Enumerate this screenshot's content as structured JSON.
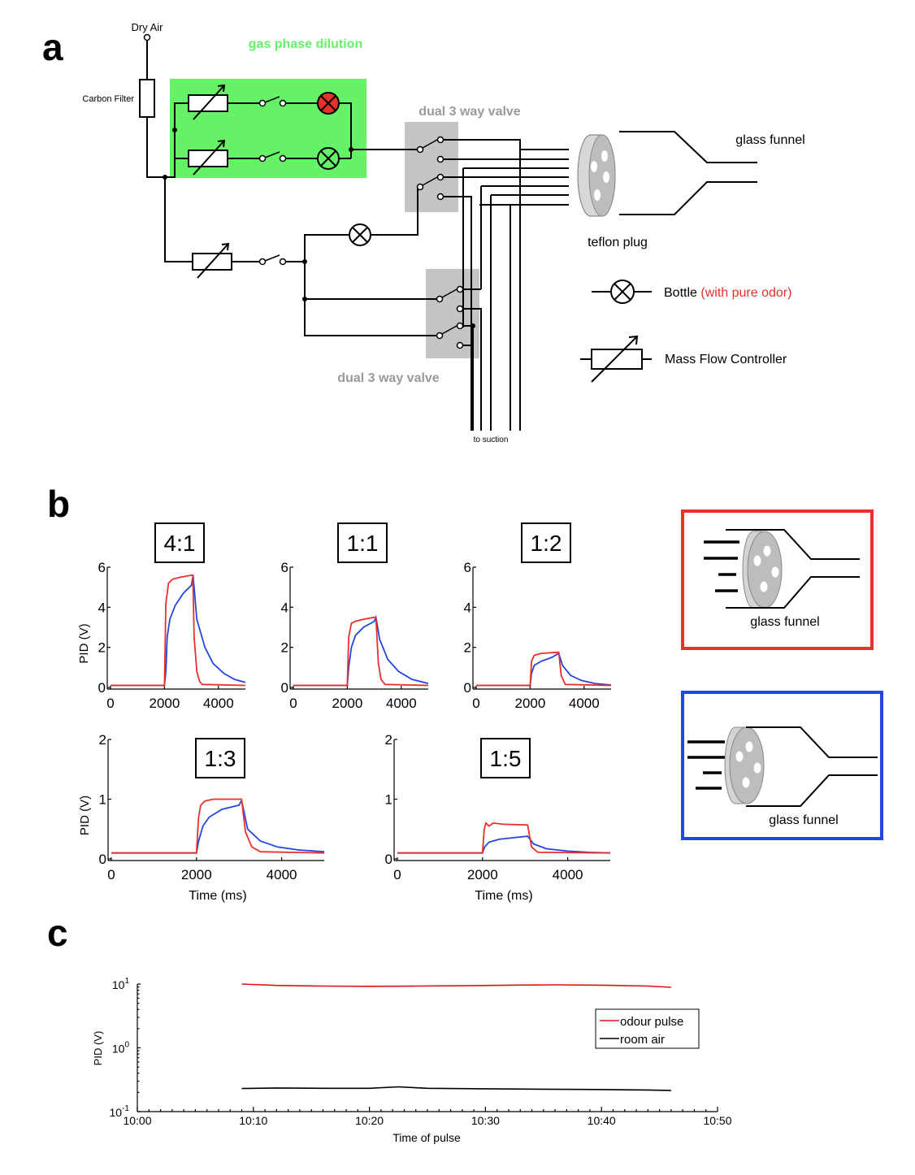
{
  "panel_labels": {
    "a": "a",
    "b": "b",
    "c": "c"
  },
  "colors": {
    "dilution_box": "#66f266",
    "valve_box": "#c4c4c4",
    "red": "#e8312a",
    "blue": "#2345e0",
    "grey_label": "#9a9a9a",
    "legend_red": "#e11010"
  },
  "diagram_a": {
    "dry_air": "Dry Air",
    "carbon_filter": "Carbon Filter",
    "gas_phase_dilution": "gas phase dilution",
    "dual_valve_top": "dual 3 way valve",
    "dual_valve_bottom": "dual 3 way valve",
    "glass_funnel": "glass funnel",
    "teflon_plug": "teflon plug",
    "to_suction": "to suction",
    "legend_bottle": "Bottle",
    "legend_bottle_note": "(with  pure odor)",
    "legend_mfc": "Mass Flow Controller",
    "icons": [
      "mass-flow-controller-icon",
      "switch-icon",
      "bottle-icon",
      "teflon-plug-icon",
      "valve-icon"
    ]
  },
  "insets_b": {
    "red_box_label": "glass funnel",
    "blue_box_label": "glass funnel"
  },
  "chart_data": [
    {
      "type": "line",
      "title": "4:1",
      "ylabel": "PID (V)",
      "xlabel": "",
      "xlim": [
        0,
        5000
      ],
      "ylim": [
        0,
        6
      ],
      "xticks": [
        "0",
        "2000",
        "4000"
      ],
      "yticks": [
        "0",
        "2",
        "4",
        "6"
      ],
      "series": [
        {
          "color": "red",
          "x": [
            0,
            2000,
            2050,
            2150,
            2300,
            2600,
            3000,
            3050,
            3100,
            3200,
            3300,
            3400,
            5000
          ],
          "values": [
            0.1,
            0.1,
            4.2,
            5.2,
            5.4,
            5.5,
            5.6,
            5.6,
            2.5,
            0.8,
            0.3,
            0.15,
            0.1
          ]
        },
        {
          "color": "blue",
          "x": [
            0,
            2000,
            2050,
            2100,
            2200,
            2400,
            2700,
            3000,
            3060,
            3200,
            3500,
            3800,
            4200,
            4600,
            5000
          ],
          "values": [
            0.1,
            0.1,
            0.8,
            2.5,
            3.4,
            4.1,
            4.7,
            5.1,
            5.6,
            3.4,
            2.0,
            1.2,
            0.7,
            0.4,
            0.25
          ]
        }
      ]
    },
    {
      "type": "line",
      "title": "1:1",
      "ylabel": "",
      "xlabel": "",
      "xlim": [
        0,
        5000
      ],
      "ylim": [
        0,
        6
      ],
      "xticks": [
        "0",
        "2000",
        "4000"
      ],
      "yticks": [
        "0",
        "2",
        "4",
        "6"
      ],
      "series": [
        {
          "color": "red",
          "x": [
            0,
            2000,
            2050,
            2150,
            2300,
            2600,
            3000,
            3060,
            3150,
            3250,
            3400,
            5000
          ],
          "values": [
            0.1,
            0.1,
            2.5,
            3.2,
            3.3,
            3.4,
            3.5,
            3.5,
            1.2,
            0.4,
            0.15,
            0.1
          ]
        },
        {
          "color": "blue",
          "x": [
            0,
            2000,
            2050,
            2150,
            2300,
            2600,
            3000,
            3060,
            3200,
            3500,
            3900,
            4400,
            5000
          ],
          "values": [
            0.1,
            0.1,
            1.0,
            2.0,
            2.6,
            3.0,
            3.3,
            3.5,
            2.4,
            1.4,
            0.8,
            0.4,
            0.2
          ]
        }
      ]
    },
    {
      "type": "line",
      "title": "1:2",
      "ylabel": "",
      "xlabel": "",
      "xlim": [
        0,
        5000
      ],
      "ylim": [
        0,
        6
      ],
      "xticks": [
        "0",
        "2000",
        "4000"
      ],
      "yticks": [
        "0",
        "2",
        "4",
        "6"
      ],
      "series": [
        {
          "color": "red",
          "x": [
            0,
            2000,
            2050,
            2150,
            2400,
            3000,
            3060,
            3150,
            3300,
            5000
          ],
          "values": [
            0.1,
            0.1,
            1.3,
            1.6,
            1.7,
            1.75,
            1.75,
            0.6,
            0.15,
            0.1
          ]
        },
        {
          "color": "blue",
          "x": [
            0,
            2000,
            2050,
            2150,
            2400,
            2800,
            3060,
            3200,
            3500,
            3900,
            4400,
            5000
          ],
          "values": [
            0.1,
            0.1,
            0.7,
            1.1,
            1.3,
            1.5,
            1.7,
            1.1,
            0.6,
            0.35,
            0.2,
            0.12
          ]
        }
      ]
    },
    {
      "type": "line",
      "title": "1:3",
      "ylabel": "PID (V)",
      "xlabel": "Time (ms)",
      "xlim": [
        0,
        5000
      ],
      "ylim": [
        0,
        2
      ],
      "xticks": [
        "0",
        "2000",
        "4000"
      ],
      "yticks": [
        "0",
        "1",
        "2"
      ],
      "series": [
        {
          "color": "red",
          "x": [
            0,
            2000,
            2050,
            2100,
            2200,
            2400,
            3000,
            3060,
            3150,
            3300,
            3500,
            5000
          ],
          "values": [
            0.1,
            0.1,
            0.7,
            0.9,
            0.97,
            1.0,
            1.0,
            1.0,
            0.45,
            0.2,
            0.12,
            0.1
          ]
        },
        {
          "color": "blue",
          "x": [
            0,
            2000,
            2050,
            2150,
            2300,
            2600,
            3000,
            3060,
            3200,
            3500,
            3900,
            4400,
            5000
          ],
          "values": [
            0.1,
            0.1,
            0.3,
            0.55,
            0.7,
            0.83,
            0.9,
            0.98,
            0.5,
            0.3,
            0.2,
            0.15,
            0.12
          ]
        }
      ]
    },
    {
      "type": "line",
      "title": "1:5",
      "ylabel": "",
      "xlabel": "Time (ms)",
      "xlim": [
        0,
        5000
      ],
      "ylim": [
        0,
        2
      ],
      "xticks": [
        "0",
        "2000",
        "4000"
      ],
      "yticks": [
        "0",
        "1",
        "2"
      ],
      "series": [
        {
          "color": "red",
          "x": [
            0,
            2000,
            2040,
            2080,
            2150,
            2250,
            2500,
            3000,
            3060,
            3150,
            3300,
            5000
          ],
          "values": [
            0.1,
            0.1,
            0.5,
            0.6,
            0.55,
            0.6,
            0.58,
            0.57,
            0.57,
            0.2,
            0.11,
            0.1
          ]
        },
        {
          "color": "blue",
          "x": [
            0,
            2000,
            2050,
            2150,
            2400,
            2800,
            3060,
            3200,
            3500,
            4000,
            4500,
            5000
          ],
          "values": [
            0.1,
            0.1,
            0.2,
            0.28,
            0.33,
            0.36,
            0.38,
            0.25,
            0.17,
            0.13,
            0.11,
            0.1
          ]
        }
      ]
    },
    {
      "type": "line",
      "title": "",
      "ylabel": "PID (V)",
      "xlabel": "Time of pulse",
      "xlim": [
        0,
        50
      ],
      "ylim": [
        0.1,
        10
      ],
      "yscale": "log",
      "xticks": [
        "10:00",
        "10:10",
        "10:20",
        "10:30",
        "10:40",
        "10:50"
      ],
      "yticks": [
        "10^1",
        "10^0",
        "10^-1"
      ],
      "legend": [
        "odour pulse",
        "room air"
      ],
      "legend_position": "right",
      "series": [
        {
          "name": "odour pulse",
          "color": "legend_red",
          "x": [
            9,
            12,
            16,
            20,
            24,
            28,
            32,
            36,
            40,
            44,
            46
          ],
          "values": [
            10.0,
            9.5,
            9.3,
            9.2,
            9.3,
            9.4,
            9.6,
            9.7,
            9.6,
            9.3,
            8.9
          ]
        },
        {
          "name": "room air",
          "color": "black",
          "x": [
            9,
            12,
            16,
            20,
            22.5,
            25,
            30,
            35,
            40,
            44,
            46
          ],
          "values": [
            0.23,
            0.235,
            0.232,
            0.232,
            0.245,
            0.232,
            0.228,
            0.225,
            0.222,
            0.218,
            0.215
          ]
        }
      ]
    }
  ]
}
